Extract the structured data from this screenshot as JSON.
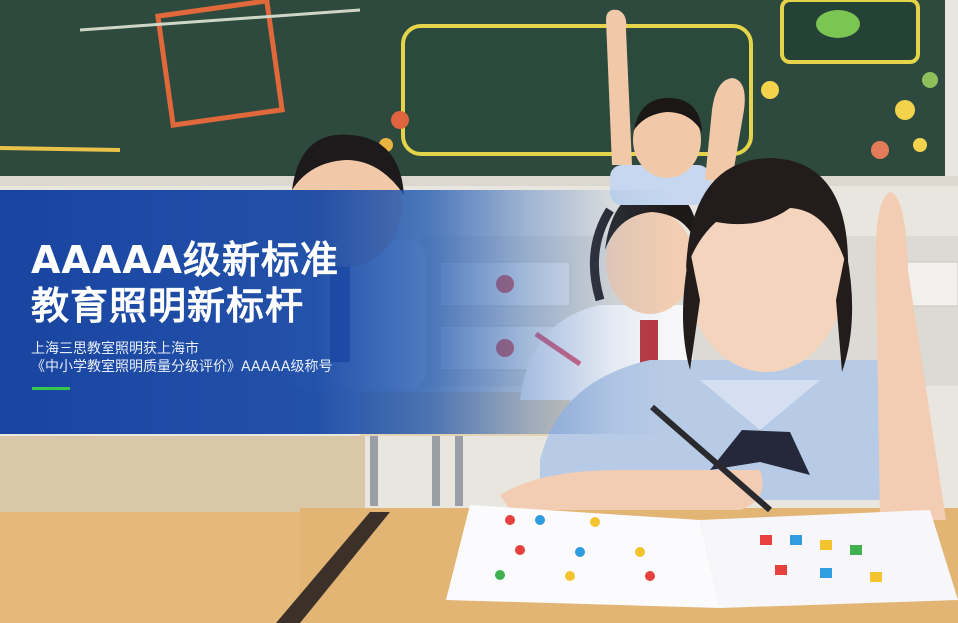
{
  "banner": {
    "title_line1": "AAAAA级新标准",
    "title_line2": "教育照明新标杆",
    "subtitle_line1": "上海三思教室照明获上海市",
    "subtitle_line2": "《中小学教室照明质量分级评价》AAAAA级称号",
    "accent_color": "#35c84a",
    "overlay_color": "#103e9e"
  },
  "photo": {
    "scene": "classroom-photo"
  }
}
